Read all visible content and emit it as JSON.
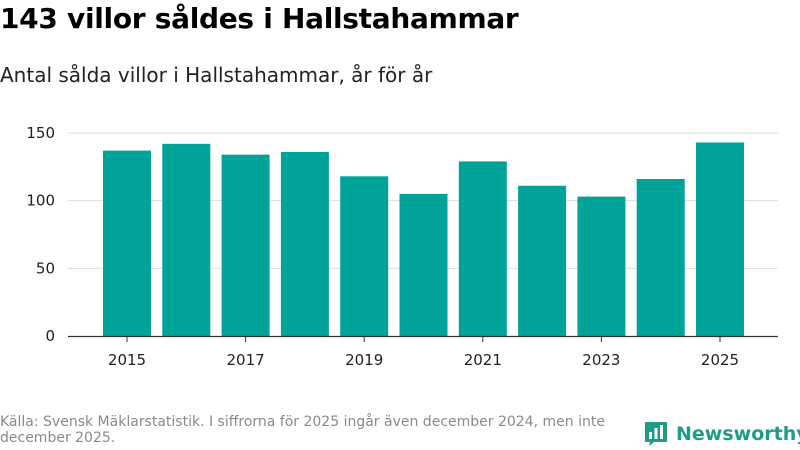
{
  "title": "143 villor såldes i Hallstahammar",
  "subtitle": "Antal sålda villor i Hallstahammar, år för år",
  "source": "Källa: Svensk Mäklarstatistik. I siffrorna för 2025 ingår även december 2024, men inte december 2025.",
  "brand": {
    "name": "Newsworthy",
    "icon": "bar-chart-logo-icon",
    "color": "#1d9d85"
  },
  "colors": {
    "bar": "#00a39a",
    "grid": "#dddddd",
    "axis": "#333333"
  },
  "chart_data": {
    "type": "bar",
    "title": "143 villor såldes i Hallstahammar",
    "subtitle": "Antal sålda villor i Hallstahammar, år för år",
    "xlabel": "",
    "ylabel": "",
    "categories": [
      "2015",
      "2016",
      "2017",
      "2018",
      "2019",
      "2020",
      "2021",
      "2022",
      "2023",
      "2024",
      "2025"
    ],
    "values": [
      137,
      142,
      134,
      136,
      118,
      105,
      129,
      111,
      103,
      116,
      143
    ],
    "x_tick_labels": [
      "2015",
      "2017",
      "2019",
      "2021",
      "2023",
      "2025"
    ],
    "y_ticks": [
      0,
      50,
      100,
      150
    ],
    "ylim": [
      0,
      150
    ],
    "grid": true,
    "legend": "none"
  }
}
